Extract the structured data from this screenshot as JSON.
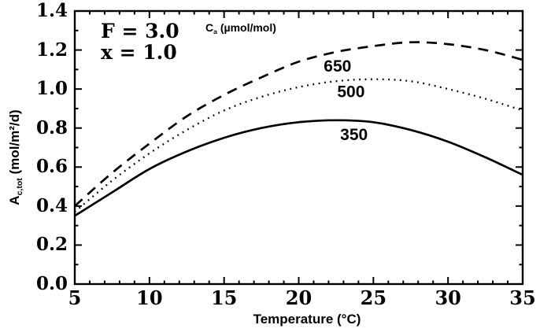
{
  "colors": {
    "ink": "#000000",
    "paper": "#ffffff"
  },
  "chart_data": {
    "type": "line",
    "title": "",
    "xlabel": "Temperature (°C)",
    "ylabel": "A_c,tot (mol/m²/d)",
    "ylabel_parts": {
      "symbol": "A",
      "sub": "c,tot",
      "units": " (mol/m²/d)"
    },
    "legend_title": "C_a (µmol/mol)",
    "legend_parts": {
      "symbol": "C",
      "sub": "a",
      "units": " (µmol/mol)"
    },
    "annotations": [
      "F = 3.0",
      "x = 1.0"
    ],
    "xlim": [
      5,
      35
    ],
    "ylim": [
      0.0,
      1.4
    ],
    "x_minor_step": 1,
    "y_minor_step": 0.1,
    "grid": false,
    "frame": "box",
    "x_ticks": {
      "values": [
        5,
        10,
        15,
        20,
        25,
        30,
        35
      ],
      "labels": [
        "5",
        "10",
        "15",
        "20",
        "25",
        "30",
        "35"
      ]
    },
    "y_ticks": {
      "values": [
        0.0,
        0.2,
        0.4,
        0.6,
        0.8,
        1.0,
        1.2,
        1.4
      ],
      "labels": [
        "0.0",
        "0.2",
        "0.4",
        "0.6",
        "0.8",
        "1.0",
        "1.2",
        "1.4"
      ]
    },
    "x": [
      5,
      7.5,
      10,
      12.5,
      15,
      17.5,
      20,
      22.5,
      25,
      27.5,
      30,
      32.5,
      35
    ],
    "series": [
      {
        "name": "650",
        "style": "dashed",
        "values": [
          0.4,
          0.57,
          0.72,
          0.86,
          0.97,
          1.06,
          1.14,
          1.19,
          1.22,
          1.24,
          1.23,
          1.2,
          1.15
        ],
        "label_at": [
          22.6,
          1.115
        ]
      },
      {
        "name": "500",
        "style": "dotted",
        "values": [
          0.37,
          0.53,
          0.67,
          0.79,
          0.89,
          0.96,
          1.01,
          1.04,
          1.05,
          1.04,
          1.0,
          0.95,
          0.89
        ],
        "label_at": [
          23.5,
          0.985
        ]
      },
      {
        "name": "350",
        "style": "solid",
        "values": [
          0.35,
          0.47,
          0.59,
          0.68,
          0.75,
          0.8,
          0.83,
          0.84,
          0.83,
          0.79,
          0.73,
          0.65,
          0.56
        ],
        "label_at": [
          23.7,
          0.765
        ]
      }
    ]
  }
}
